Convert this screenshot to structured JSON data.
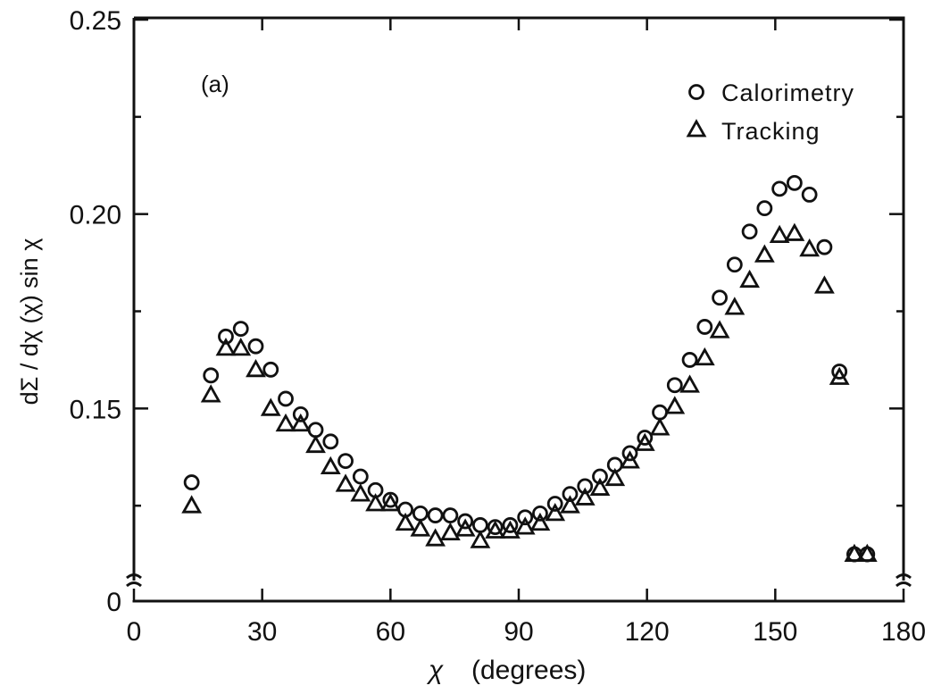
{
  "chart_data": {
    "type": "scatter",
    "panel_label": "(a)",
    "xlabel": "χ",
    "xlabel_unit": "(degrees)",
    "ylabel": "dΣ / dχ (χ) sin χ",
    "xlim": [
      0,
      180
    ],
    "ylim": [
      0,
      0.25
    ],
    "y_axis_break": true,
    "x_ticks": [
      0,
      30,
      60,
      90,
      120,
      150,
      180
    ],
    "x_tick_labels": [
      "0",
      "30",
      "60",
      "90",
      "120",
      "150",
      "180"
    ],
    "y_ticks": [
      0,
      0.15,
      0.2,
      0.25
    ],
    "y_tick_labels": [
      "0",
      "0.15",
      "0.20",
      "0.25"
    ],
    "legend_position": "top-right",
    "series": [
      {
        "name": "Calorimetry",
        "marker": "circle",
        "points": [
          [
            13.5,
            0.131
          ],
          [
            18,
            0.1585
          ],
          [
            21.5,
            0.1685
          ],
          [
            25,
            0.1705
          ],
          [
            28.5,
            0.166
          ],
          [
            32,
            0.16
          ],
          [
            35.5,
            0.1525
          ],
          [
            39,
            0.1485
          ],
          [
            42.5,
            0.1445
          ],
          [
            46,
            0.1415
          ],
          [
            49.5,
            0.1365
          ],
          [
            53,
            0.1325
          ],
          [
            56.5,
            0.129
          ],
          [
            60,
            0.1265
          ],
          [
            63.5,
            0.124
          ],
          [
            67,
            0.123
          ],
          [
            70.5,
            0.1225
          ],
          [
            74,
            0.1225
          ],
          [
            77.5,
            0.121
          ],
          [
            81,
            0.12
          ],
          [
            84.5,
            0.1195
          ],
          [
            88,
            0.12
          ],
          [
            91.5,
            0.122
          ],
          [
            95,
            0.123
          ],
          [
            98.5,
            0.1255
          ],
          [
            102,
            0.128
          ],
          [
            105.5,
            0.13
          ],
          [
            109,
            0.1325
          ],
          [
            112.5,
            0.1355
          ],
          [
            116,
            0.1385
          ],
          [
            119.5,
            0.1425
          ],
          [
            123,
            0.149
          ],
          [
            126.5,
            0.156
          ],
          [
            130,
            0.1625
          ],
          [
            133.5,
            0.171
          ],
          [
            137,
            0.1785
          ],
          [
            140.5,
            0.187
          ],
          [
            144,
            0.1955
          ],
          [
            147.5,
            0.2015
          ],
          [
            151,
            0.2065
          ],
          [
            154.5,
            0.208
          ],
          [
            158,
            0.205
          ],
          [
            161.5,
            0.1915
          ],
          [
            165,
            0.1595
          ],
          [
            168.5,
            0.1125
          ],
          [
            171.5,
            0.1125
          ]
        ]
      },
      {
        "name": "Tracking",
        "marker": "triangle",
        "points": [
          [
            13.5,
            0.125
          ],
          [
            18,
            0.1535
          ],
          [
            21.5,
            0.1655
          ],
          [
            25,
            0.1655
          ],
          [
            28.5,
            0.16
          ],
          [
            32,
            0.15
          ],
          [
            35.5,
            0.146
          ],
          [
            39,
            0.146
          ],
          [
            42.5,
            0.1405
          ],
          [
            46,
            0.135
          ],
          [
            49.5,
            0.1305
          ],
          [
            53,
            0.128
          ],
          [
            56.5,
            0.1255
          ],
          [
            60,
            0.1255
          ],
          [
            63.5,
            0.1205
          ],
          [
            67,
            0.119
          ],
          [
            70.5,
            0.1165
          ],
          [
            74,
            0.118
          ],
          [
            77.5,
            0.119
          ],
          [
            81,
            0.116
          ],
          [
            84.5,
            0.1185
          ],
          [
            88,
            0.1185
          ],
          [
            91.5,
            0.1195
          ],
          [
            95,
            0.1205
          ],
          [
            98.5,
            0.123
          ],
          [
            102,
            0.125
          ],
          [
            105.5,
            0.127
          ],
          [
            109,
            0.1295
          ],
          [
            112.5,
            0.132
          ],
          [
            116,
            0.1365
          ],
          [
            119.5,
            0.141
          ],
          [
            123,
            0.145
          ],
          [
            126.5,
            0.1505
          ],
          [
            130,
            0.156
          ],
          [
            133.5,
            0.163
          ],
          [
            137,
            0.17
          ],
          [
            140.5,
            0.176
          ],
          [
            144,
            0.183
          ],
          [
            147.5,
            0.1895
          ],
          [
            151,
            0.1945
          ],
          [
            154.5,
            0.195
          ],
          [
            158,
            0.191
          ],
          [
            161.5,
            0.1815
          ],
          [
            165,
            0.158
          ],
          [
            168.5,
            0.1125
          ],
          [
            171.5,
            0.1125
          ]
        ]
      }
    ]
  }
}
